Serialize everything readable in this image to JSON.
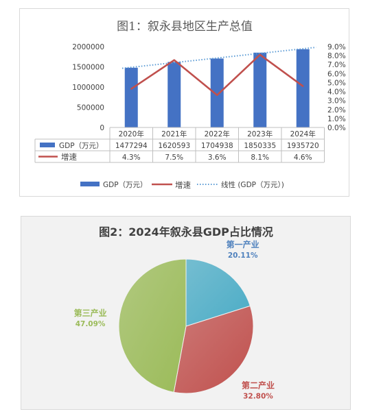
{
  "chart_data": [
    {
      "type": "bar",
      "title": "图1：叙永县地区生产总值",
      "categories": [
        "2020年",
        "2021年",
        "2022年",
        "2023年",
        "2024年"
      ],
      "series": [
        {
          "name": "GDP（万元）",
          "type": "bar",
          "axis": "left",
          "values": [
            1477294,
            1620593,
            1704938,
            1850335,
            1935720
          ],
          "value_labels": [
            "1477294",
            "1620593",
            "1704938",
            "1850335",
            "1935720"
          ],
          "color": "#4472C4"
        },
        {
          "name": "增速",
          "type": "line",
          "axis": "right",
          "values": [
            4.3,
            7.5,
            3.6,
            8.1,
            4.6
          ],
          "value_labels": [
            "4.3%",
            "7.5%",
            "3.6%",
            "8.1%",
            "4.6%"
          ],
          "color": "#C0504D"
        },
        {
          "name": "线性 (GDP（万元）)",
          "type": "trendline",
          "axis": "left",
          "color": "#5B9BD5"
        }
      ],
      "y_ticks": [
        "2000000",
        "1500000",
        "1000000",
        "500000",
        "0"
      ],
      "y2_ticks": [
        "9.0%",
        "8.0%",
        "7.0%",
        "6.0%",
        "5.0%",
        "4.0%",
        "3.0%",
        "2.0%",
        "1.0%",
        "0.0%"
      ],
      "ylim": [
        0,
        2000000
      ],
      "y2lim": [
        0,
        9
      ],
      "data_table": true,
      "legend_position": "bottom",
      "legend": [
        {
          "label": "GDP（万元）",
          "kind": "bar",
          "color": "#4472C4"
        },
        {
          "label": "增速",
          "kind": "line",
          "color": "#C0504D"
        },
        {
          "label": "线性 (GDP（万元）)",
          "kind": "dotted",
          "color": "#5B9BD5"
        }
      ]
    },
    {
      "type": "pie",
      "title": "图2：2024年叙永县GDP占比情况",
      "slices": [
        {
          "label": "第一产业",
          "value": 20.11,
          "value_label": "20.11%",
          "color": "#4BACC6",
          "text_color": "#4F81BD"
        },
        {
          "label": "第二产业",
          "value": 32.8,
          "value_label": "32.80%",
          "color": "#C0504D",
          "text_color": "#C0504D"
        },
        {
          "label": "第三产业",
          "value": 47.09,
          "value_label": "47.09%",
          "color": "#9BBB59",
          "text_color": "#9BBB59"
        }
      ]
    }
  ]
}
